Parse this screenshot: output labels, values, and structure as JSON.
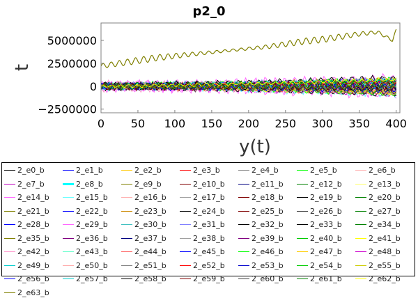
{
  "chart_data": {
    "type": "line",
    "title": "p2_0",
    "xlabel": "y(t)",
    "ylabel": "t",
    "xlim": [
      0,
      405
    ],
    "ylim": [
      -2900000,
      6900000
    ],
    "xticks": [
      0,
      50,
      100,
      150,
      200,
      250,
      300,
      350,
      400
    ],
    "yticks": [
      -2500000,
      0,
      2500000,
      5000000
    ],
    "ytick_labels": [
      "−2500000",
      "0",
      "2500000",
      "5000000"
    ],
    "grid": false,
    "legend_position": "bottom",
    "highlight_series": {
      "name": "2_e21_b",
      "color": "#808000",
      "x": [
        0,
        25,
        50,
        75,
        100,
        125,
        150,
        175,
        200,
        225,
        250,
        275,
        300,
        325,
        350,
        375,
        395,
        400
      ],
      "y": [
        2200000,
        2500000,
        2800000,
        3100000,
        3300000,
        3500000,
        3700000,
        3900000,
        4100000,
        4300000,
        4600000,
        4900000,
        5100000,
        5400000,
        5700000,
        5900000,
        5000000,
        6100000
      ]
    },
    "series": [
      {
        "name": "2_e0_b",
        "color": "#000000"
      },
      {
        "name": "2_e1_b",
        "color": "#0000ff"
      },
      {
        "name": "2_e2_b",
        "color": "#ffc800"
      },
      {
        "name": "2_e3_b",
        "color": "#ff0000"
      },
      {
        "name": "2_e4_b",
        "color": "#808080"
      },
      {
        "name": "2_e5_b",
        "color": "#00ff00"
      },
      {
        "name": "2_e6_b",
        "color": "#ffafaf"
      },
      {
        "name": "2_e7_b",
        "color": "#c000c0"
      },
      {
        "name": "2_e8_b",
        "color": "#00ffff"
      },
      {
        "name": "2_e9_b",
        "color": "#808000"
      },
      {
        "name": "2_e10_b",
        "color": "#800000"
      },
      {
        "name": "2_e11_b",
        "color": "#000080"
      },
      {
        "name": "2_e12_b",
        "color": "#008000"
      },
      {
        "name": "2_e13_b",
        "color": "#ffff66"
      },
      {
        "name": "2_e14_b",
        "color": "#ff66ff"
      },
      {
        "name": "2_e15_b",
        "color": "#66ffff"
      },
      {
        "name": "2_e16_b",
        "color": "#ffb0b0"
      },
      {
        "name": "2_e17_b",
        "color": "#a0a0a0"
      },
      {
        "name": "2_e18_b",
        "color": "#800000"
      },
      {
        "name": "2_e19_b",
        "color": "#000000"
      },
      {
        "name": "2_e20_b",
        "color": "#008000"
      },
      {
        "name": "2_e21_b",
        "color": "#808000"
      },
      {
        "name": "2_e22_b",
        "color": "#0000ff"
      },
      {
        "name": "2_e23_b",
        "color": "#cc8800"
      },
      {
        "name": "2_e24_b",
        "color": "#000000"
      },
      {
        "name": "2_e25_b",
        "color": "#800000"
      },
      {
        "name": "2_e26_b",
        "color": "#404040"
      },
      {
        "name": "2_e27_b",
        "color": "#008000"
      },
      {
        "name": "2_e28_b",
        "color": "#0000ff"
      },
      {
        "name": "2_e29_b",
        "color": "#ff66ff"
      },
      {
        "name": "2_e30_b",
        "color": "#40c0c0"
      },
      {
        "name": "2_e31_b",
        "color": "#8080ff"
      },
      {
        "name": "2_e32_b",
        "color": "#000000"
      },
      {
        "name": "2_e33_b",
        "color": "#000000"
      },
      {
        "name": "2_e34_b",
        "color": "#008000"
      },
      {
        "name": "2_e35_b",
        "color": "#808000"
      },
      {
        "name": "2_e36_b",
        "color": "#800080"
      },
      {
        "name": "2_e37_b",
        "color": "#000080"
      },
      {
        "name": "2_e38_b",
        "color": "#a0a0a0"
      },
      {
        "name": "2_e39_b",
        "color": "#800080"
      },
      {
        "name": "2_e40_b",
        "color": "#00cc00"
      },
      {
        "name": "2_e41_b",
        "color": "#ffff00"
      },
      {
        "name": "2_e42_b",
        "color": "#ff99cc"
      },
      {
        "name": "2_e43_b",
        "color": "#66ffcc"
      },
      {
        "name": "2_e44_b",
        "color": "#ff6666"
      },
      {
        "name": "2_e45_b",
        "color": "#0000ff"
      },
      {
        "name": "2_e46_b",
        "color": "#00ff00"
      },
      {
        "name": "2_e47_b",
        "color": "#ffcc00"
      },
      {
        "name": "2_e48_b",
        "color": "#cc00cc"
      },
      {
        "name": "2_e49_b",
        "color": "#00cccc"
      },
      {
        "name": "2_e50_b",
        "color": "#ffaaaa"
      },
      {
        "name": "2_e51_b",
        "color": "#808080"
      },
      {
        "name": "2_e52_b",
        "color": "#ff0000"
      },
      {
        "name": "2_e53_b",
        "color": "#0000cc"
      },
      {
        "name": "2_e54_b",
        "color": "#00cc00"
      },
      {
        "name": "2_e55_b",
        "color": "#cccc00"
      },
      {
        "name": "2_e56_b",
        "color": "#0000ff"
      },
      {
        "name": "2_e57_b",
        "color": "#00cccc"
      },
      {
        "name": "2_e58_b",
        "color": "#000000"
      },
      {
        "name": "2_e59_b",
        "color": "#800000"
      },
      {
        "name": "2_e60_b",
        "color": "#404040"
      },
      {
        "name": "2_e61_b",
        "color": "#008000"
      },
      {
        "name": "2_e62_b",
        "color": "#ffff00"
      },
      {
        "name": "2_e63_b",
        "color": "#808000"
      }
    ]
  }
}
